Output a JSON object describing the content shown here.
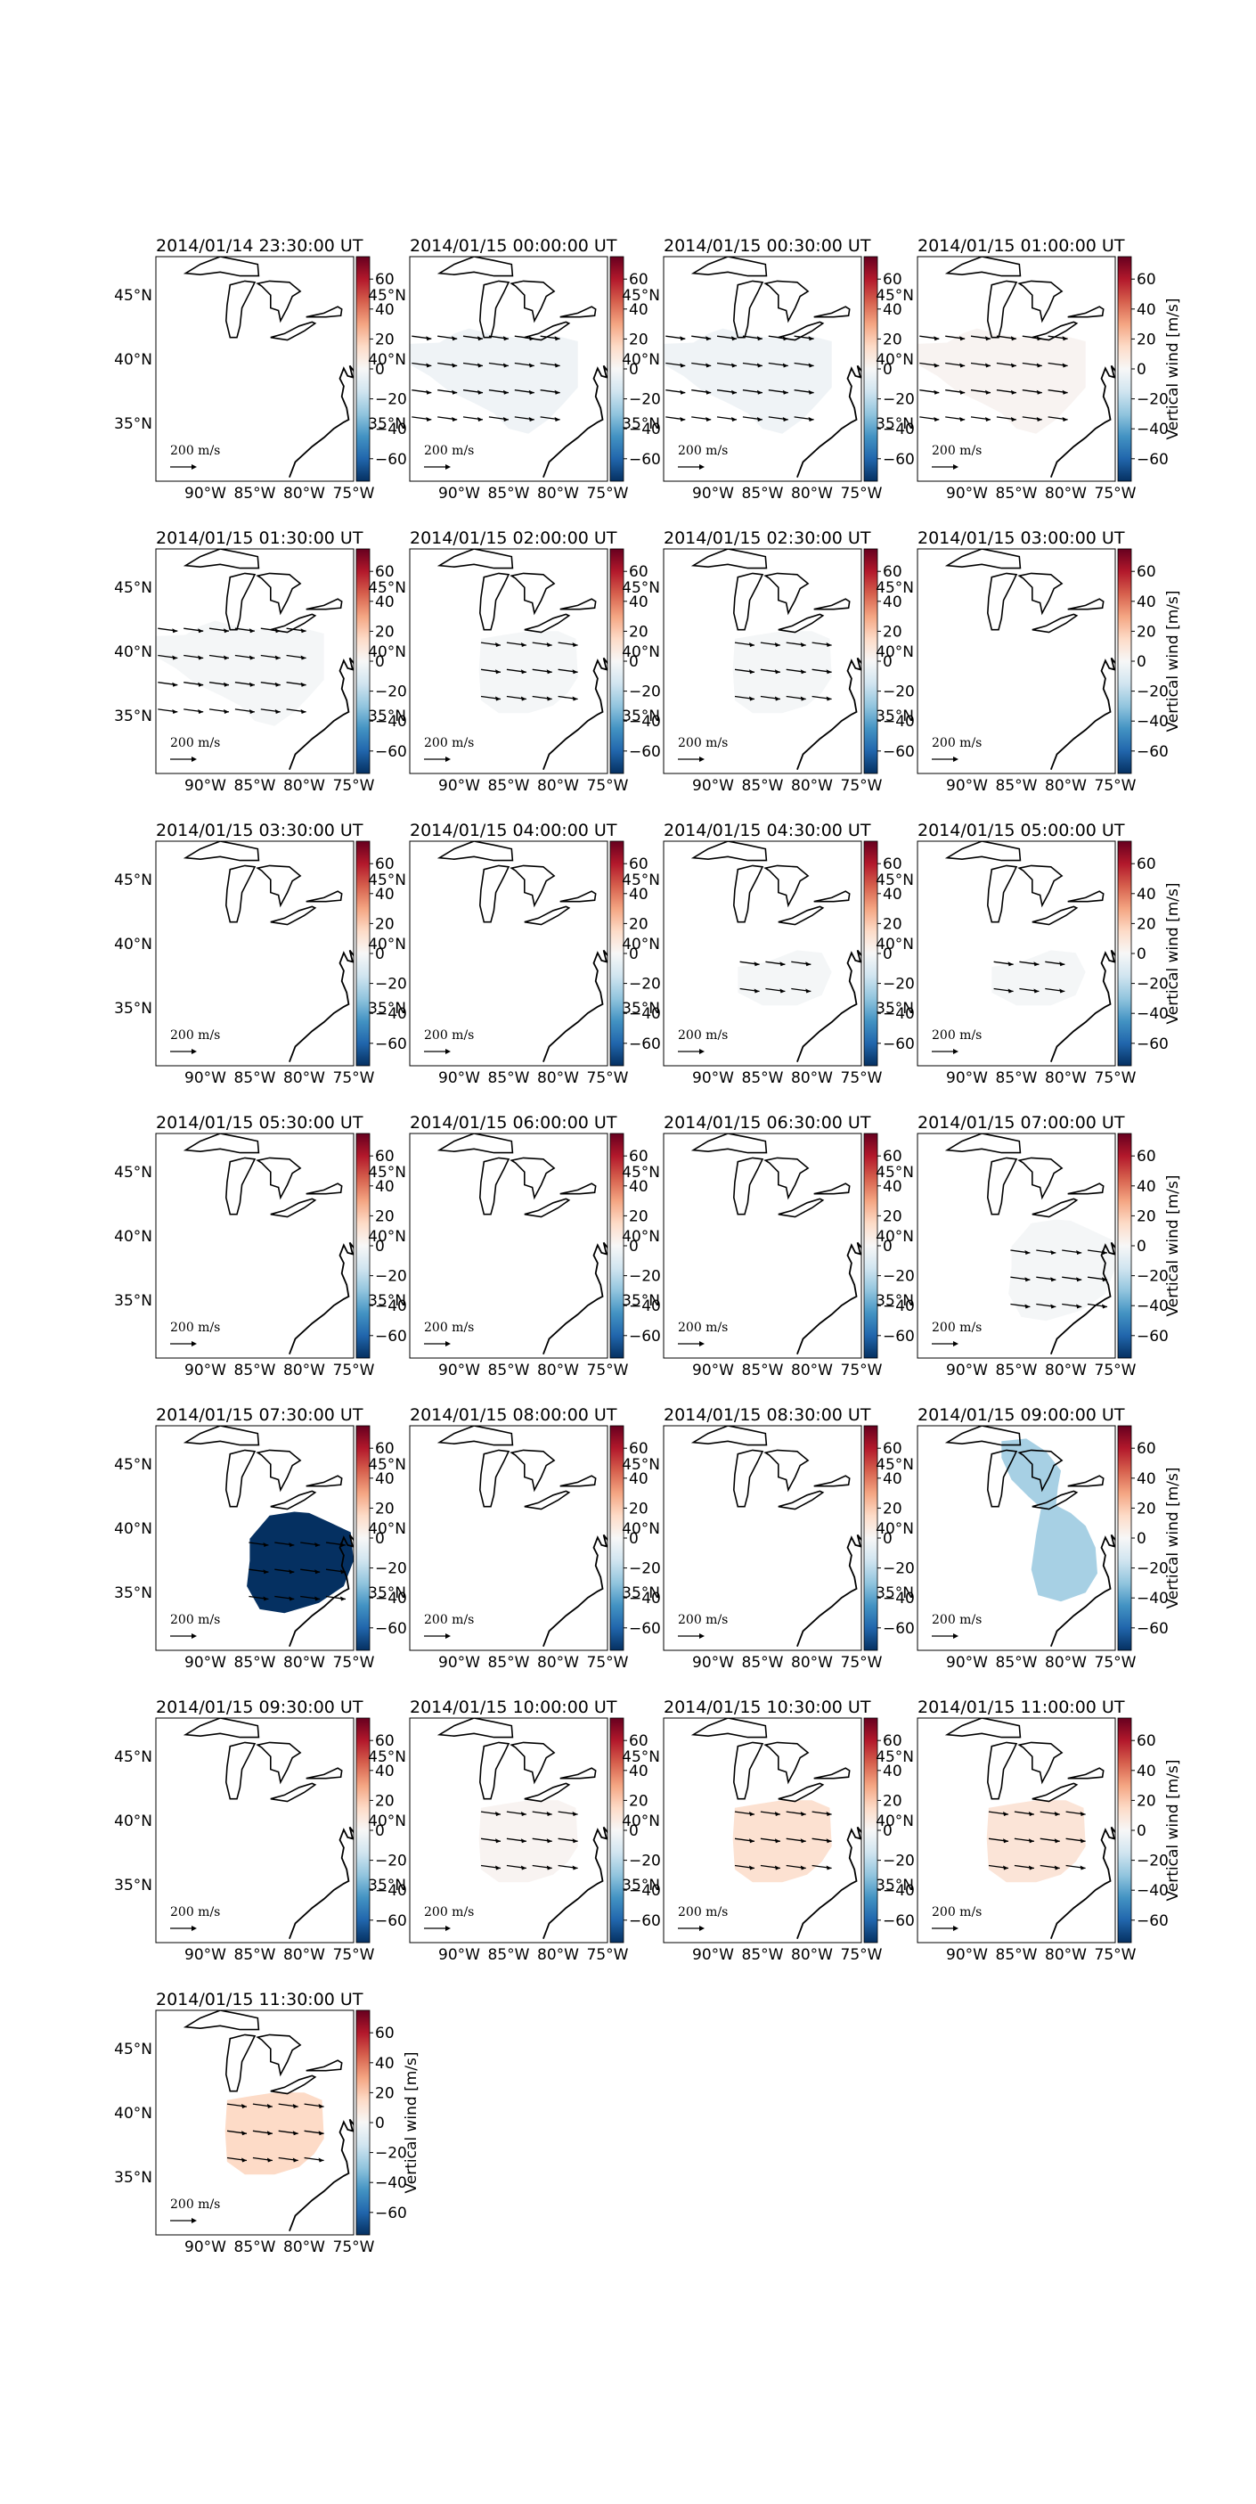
{
  "chart_data": {
    "type": "heatmap",
    "colorbar": {
      "label": "Vertical wind [m/s]",
      "range": [
        -75,
        75
      ],
      "ticks": [
        "60",
        "40",
        "20",
        "0",
        "−20",
        "−40",
        "−60"
      ],
      "colormap": "RdBu_r",
      "colors": [
        "#053061",
        "#2166ac",
        "#4393c3",
        "#92c5de",
        "#d1e5f0",
        "#f7f7f7",
        "#fddbc7",
        "#f4a582",
        "#d6604d",
        "#b2182b",
        "#67001f"
      ]
    },
    "map": {
      "lon_range": [
        -95,
        -75
      ],
      "lat_range": [
        30.5,
        48
      ],
      "lon_ticks": [
        "90°W",
        "85°W",
        "80°W",
        "75°W"
      ],
      "lat_ticks": [
        "45°N",
        "40°N",
        "35°N"
      ],
      "arrow_key_label": "200 m/s"
    },
    "panels": [
      {
        "title": "2014/01/14 23:30:00 UT",
        "value": null,
        "region": null,
        "arrows": false
      },
      {
        "title": "2014/01/15 00:00:00 UT",
        "value": -3,
        "region": "west",
        "arrows": true
      },
      {
        "title": "2014/01/15 00:30:00 UT",
        "value": -3,
        "region": "west",
        "arrows": true
      },
      {
        "title": "2014/01/15 01:00:00 UT",
        "value": 2,
        "region": "west",
        "arrows": true
      },
      {
        "title": "2014/01/15 01:30:00 UT",
        "value": -1,
        "region": "west",
        "arrows": true
      },
      {
        "title": "2014/01/15 02:00:00 UT",
        "value": -1,
        "region": "central",
        "arrows": true
      },
      {
        "title": "2014/01/15 02:30:00 UT",
        "value": -1,
        "region": "central",
        "arrows": true
      },
      {
        "title": "2014/01/15 03:00:00 UT",
        "value": null,
        "region": null,
        "arrows": false
      },
      {
        "title": "2014/01/15 03:30:00 UT",
        "value": null,
        "region": null,
        "arrows": false
      },
      {
        "title": "2014/01/15 04:00:00 UT",
        "value": null,
        "region": null,
        "arrows": false
      },
      {
        "title": "2014/01/15 04:30:00 UT",
        "value": -1,
        "region": "south",
        "arrows": true
      },
      {
        "title": "2014/01/15 05:00:00 UT",
        "value": -1,
        "region": "south",
        "arrows": true
      },
      {
        "title": "2014/01/15 05:30:00 UT",
        "value": null,
        "region": null,
        "arrows": false
      },
      {
        "title": "2014/01/15 06:00:00 UT",
        "value": null,
        "region": null,
        "arrows": false
      },
      {
        "title": "2014/01/15 06:30:00 UT",
        "value": null,
        "region": null,
        "arrows": false
      },
      {
        "title": "2014/01/15 07:00:00 UT",
        "value": -1,
        "region": "east",
        "arrows": true
      },
      {
        "title": "2014/01/15 07:30:00 UT",
        "value": -75,
        "region": "east",
        "arrows": true
      },
      {
        "title": "2014/01/15 08:00:00 UT",
        "value": null,
        "region": null,
        "arrows": false
      },
      {
        "title": "2014/01/15 08:30:00 UT",
        "value": null,
        "region": null,
        "arrows": false
      },
      {
        "title": "2014/01/15 09:00:00 UT",
        "value": -25,
        "region": "north-south",
        "arrows": false
      },
      {
        "title": "2014/01/15 09:30:00 UT",
        "value": null,
        "region": null,
        "arrows": false
      },
      {
        "title": "2014/01/15 10:00:00 UT",
        "value": 2,
        "region": "central",
        "arrows": true
      },
      {
        "title": "2014/01/15 10:30:00 UT",
        "value": 12,
        "region": "central",
        "arrows": true
      },
      {
        "title": "2014/01/15 11:00:00 UT",
        "value": 10,
        "region": "central",
        "arrows": true
      },
      {
        "title": "2014/01/15 11:30:00 UT",
        "value": 15,
        "region": "central",
        "arrows": true
      }
    ]
  }
}
